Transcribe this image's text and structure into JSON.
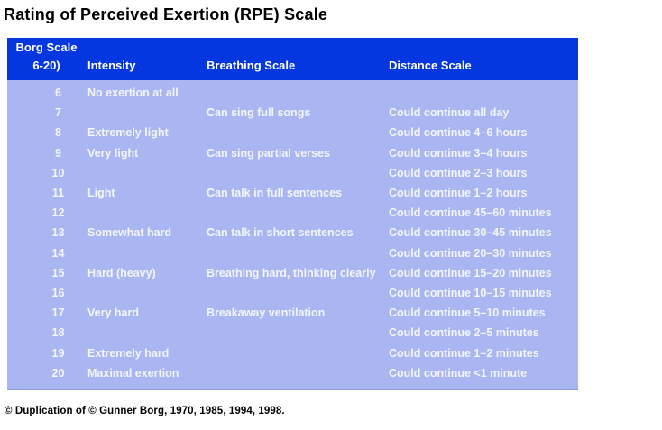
{
  "page": {
    "title": "Rating of Perceived Exertion (RPE) Scale",
    "footer": "© Duplication of © Gunner Borg, 1970, 1985, 1994, 1998."
  },
  "colors": {
    "header_bg": "#0537e0",
    "header_text": "#ffffff",
    "body_bg": "#a9b6f1",
    "body_text": "#f4f5fd"
  },
  "table": {
    "header": {
      "borg_line1": "Borg Scale",
      "borg_line2": "6-20)",
      "intensity": "Intensity",
      "breathing": "Breathing Scale",
      "distance": "Distance Scale"
    },
    "rows": [
      {
        "scale": "6",
        "intensity": "No exertion at all",
        "breathing": "",
        "distance": ""
      },
      {
        "scale": "7",
        "intensity": "",
        "breathing": "Can sing full songs",
        "distance": "Could continue all day"
      },
      {
        "scale": "8",
        "intensity": "Extremely light",
        "breathing": "",
        "distance": "Could continue 4–6 hours"
      },
      {
        "scale": "9",
        "intensity": "Very light",
        "breathing": "Can sing partial verses",
        "distance": "Could continue 3–4 hours"
      },
      {
        "scale": "10",
        "intensity": "",
        "breathing": "",
        "distance": "Could continue 2–3 hours"
      },
      {
        "scale": "11",
        "intensity": "Light",
        "breathing": "Can talk in full sentences",
        "distance": "Could continue 1–2 hours"
      },
      {
        "scale": "12",
        "intensity": "",
        "breathing": "",
        "distance": "Could continue 45–60 minutes"
      },
      {
        "scale": "13",
        "intensity": "Somewhat hard",
        "breathing": "Can talk in short sentences",
        "distance": "Could continue 30–45 minutes"
      },
      {
        "scale": "14",
        "intensity": "",
        "breathing": "",
        "distance": "Could continue 20–30 minutes"
      },
      {
        "scale": "15",
        "intensity": "Hard (heavy)",
        "breathing": "Breathing hard, thinking clearly",
        "distance": "Could continue 15–20 minutes"
      },
      {
        "scale": "16",
        "intensity": "",
        "breathing": "",
        "distance": "Could continue 10–15 minutes"
      },
      {
        "scale": "17",
        "intensity": "Very hard",
        "breathing": "Breakaway ventilation",
        "distance": "Could continue 5–10 minutes"
      },
      {
        "scale": "18",
        "intensity": "",
        "breathing": "",
        "distance": "Could continue 2–5 minutes"
      },
      {
        "scale": "19",
        "intensity": "Extremely hard",
        "breathing": "",
        "distance": "Could continue 1–2 minutes"
      },
      {
        "scale": "20",
        "intensity": "Maximal exertion",
        "breathing": "",
        "distance": "Could continue <1 minute"
      }
    ]
  }
}
